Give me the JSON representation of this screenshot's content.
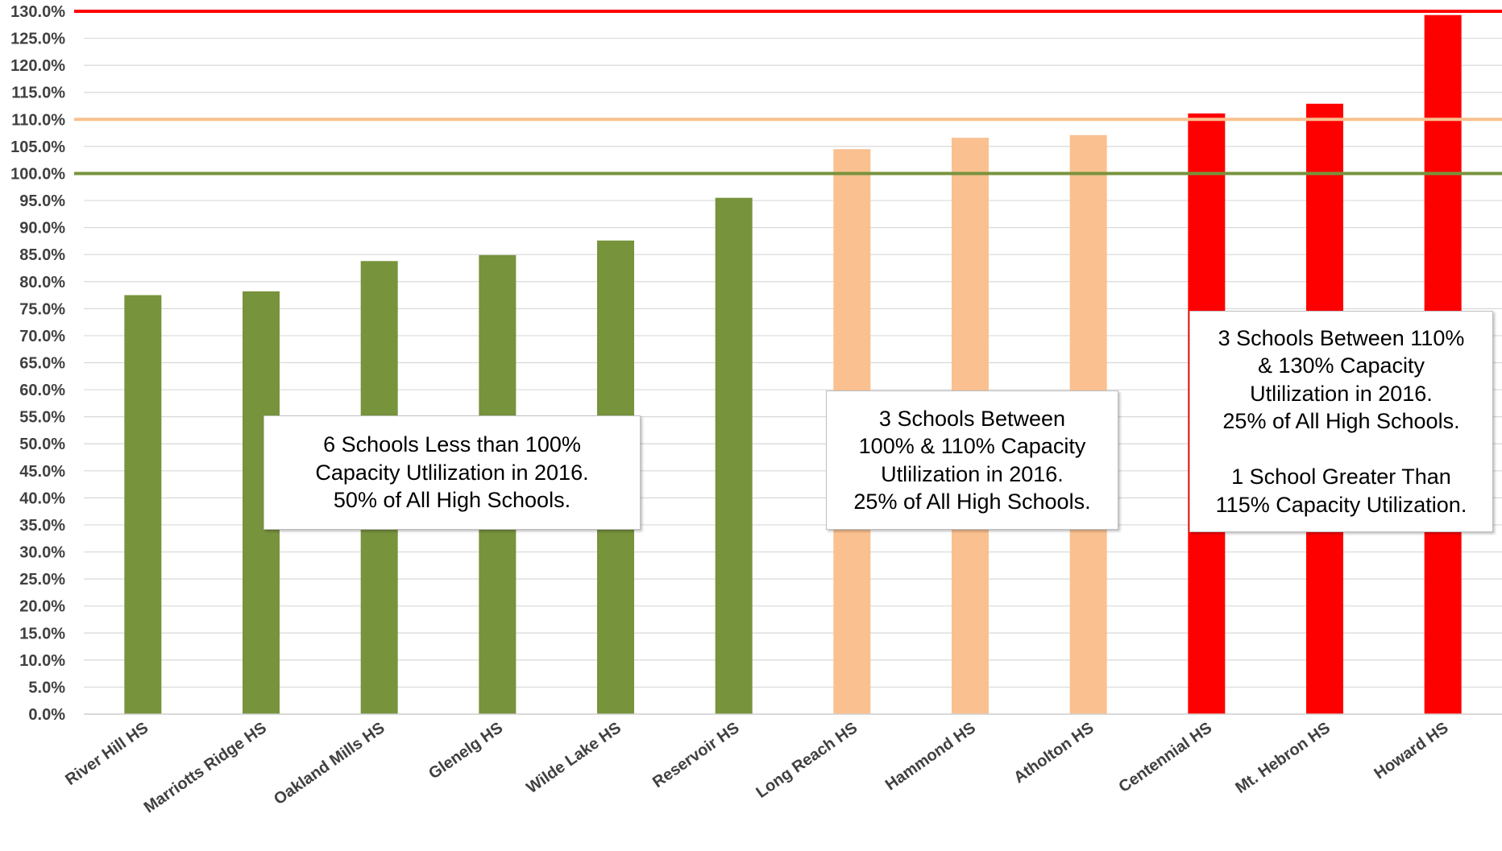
{
  "chart_data": {
    "type": "bar",
    "categories": [
      "River Hill HS",
      "Marriotts Ridge HS",
      "Oakland Mills HS",
      "Glenelg HS",
      "Wilde Lake HS",
      "Reservoir HS",
      "Long Reach HS",
      "Hammond HS",
      "Atholton HS",
      "Centennial HS",
      "Mt. Hebron HS",
      "Howard HS"
    ],
    "values": [
      77.5,
      78.2,
      83.8,
      84.9,
      87.6,
      95.5,
      104.5,
      106.6,
      107.1,
      111.1,
      112.9,
      129.3
    ],
    "bar_colors": [
      "#77933c",
      "#77933c",
      "#77933c",
      "#77933c",
      "#77933c",
      "#77933c",
      "#fac090",
      "#fac090",
      "#fac090",
      "#ff0000",
      "#ff0000",
      "#ff0000"
    ],
    "y_tick_labels": [
      "0.0%",
      "5.0%",
      "10.0%",
      "15.0%",
      "20.0%",
      "25.0%",
      "30.0%",
      "35.0%",
      "40.0%",
      "45.0%",
      "50.0%",
      "55.0%",
      "60.0%",
      "65.0%",
      "70.0%",
      "75.0%",
      "80.0%",
      "85.0%",
      "90.0%",
      "95.0%",
      "100.0%",
      "105.0%",
      "110.0%",
      "115.0%",
      "120.0%",
      "125.0%",
      "130.0%"
    ],
    "ylim": [
      0,
      130
    ],
    "y_tick_step": 5,
    "grid": true,
    "reference_lines": [
      {
        "value": 100,
        "color": "#77933c"
      },
      {
        "value": 110,
        "color": "#fac090"
      },
      {
        "value": 130,
        "color": "#ff0000"
      }
    ],
    "annotations": [
      {
        "id": "green",
        "lines": [
          "6 Schools Less than 100%",
          "Capacity Utlilization in 2016.",
          "50% of All High Schools."
        ]
      },
      {
        "id": "peach",
        "lines": [
          "3 Schools Between",
          "100% & 110% Capacity",
          "Utlilization in 2016.",
          "25% of All High Schools."
        ]
      },
      {
        "id": "red",
        "lines": [
          "3 Schools Between 110%",
          "& 130% Capacity",
          "Utlilization in 2016.",
          "25% of All High Schools.",
          "",
          "1 School Greater Than",
          "115% Capacity Utilization."
        ]
      }
    ]
  }
}
